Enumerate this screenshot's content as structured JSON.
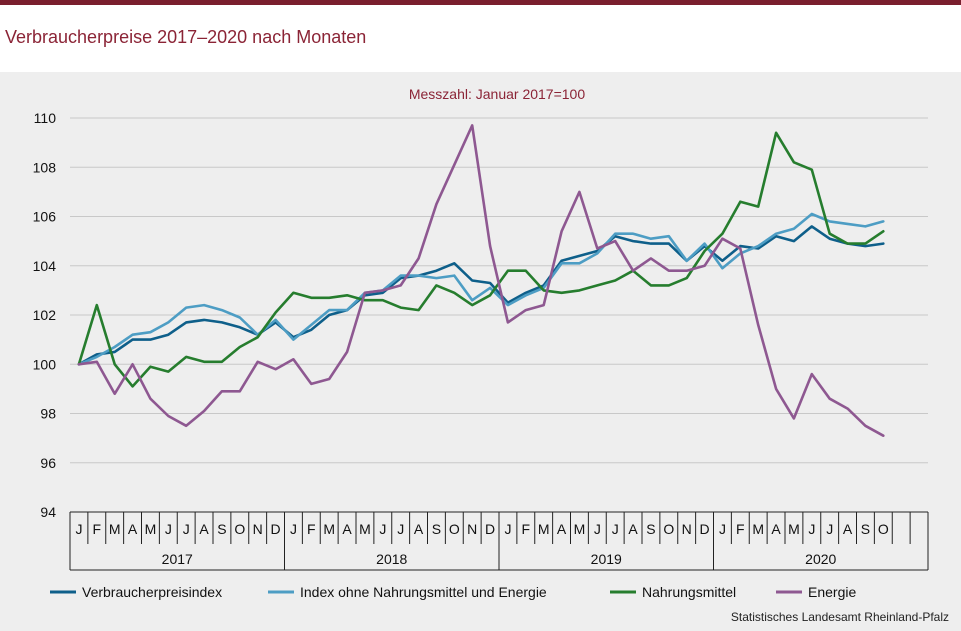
{
  "header": {
    "title": "Verbraucherpreise 2017–2020 nach Monaten"
  },
  "source": "Statistisches Landesamt Rheinland-Pfalz",
  "chart_data": {
    "type": "line",
    "subtitle": "Messzahl:  Januar  2017=100",
    "ylim": [
      94,
      110
    ],
    "yticks": [
      94,
      96,
      98,
      100,
      102,
      104,
      106,
      108,
      110
    ],
    "grid": true,
    "legend_position": "bottom",
    "month_labels": [
      "J",
      "F",
      "M",
      "A",
      "M",
      "J",
      "J",
      "A",
      "S",
      "O",
      "N",
      "D",
      "J",
      "F",
      "M",
      "A",
      "M",
      "J",
      "J",
      "A",
      "S",
      "O",
      "N",
      "D",
      "J",
      "F",
      "M",
      "A",
      "M",
      "J",
      "J",
      "A",
      "S",
      "O",
      "N",
      "D",
      "J",
      "F",
      "M",
      "A",
      "M",
      "J",
      "J",
      "A",
      "S",
      "O"
    ],
    "years": [
      "2017",
      "2018",
      "2019",
      "2020"
    ],
    "series": [
      {
        "name": "Verbraucherpreisindex",
        "color": "#0e5f8a",
        "values": [
          100.0,
          100.4,
          100.5,
          101.0,
          101.0,
          101.2,
          101.7,
          101.8,
          101.7,
          101.5,
          101.2,
          101.7,
          101.1,
          101.4,
          102.0,
          102.2,
          102.8,
          102.9,
          103.5,
          103.6,
          103.8,
          104.1,
          103.4,
          103.3,
          102.5,
          102.9,
          103.2,
          104.2,
          104.4,
          104.6,
          105.2,
          105.0,
          104.9,
          104.9,
          104.2,
          104.8,
          104.2,
          104.8,
          104.7,
          105.2,
          105.0,
          105.6,
          105.1,
          104.9,
          104.8,
          104.9
        ]
      },
      {
        "name": "Index ohne Nahrungsmittel und Energie",
        "color": "#4d9dc4",
        "values": [
          100.0,
          100.3,
          100.7,
          101.2,
          101.3,
          101.7,
          102.3,
          102.4,
          102.2,
          101.9,
          101.2,
          101.8,
          101.0,
          101.6,
          102.2,
          102.2,
          102.9,
          103.0,
          103.6,
          103.6,
          103.5,
          103.6,
          102.6,
          103.1,
          102.4,
          102.8,
          103.1,
          104.1,
          104.1,
          104.5,
          105.3,
          105.3,
          105.1,
          105.2,
          104.2,
          104.9,
          103.9,
          104.5,
          104.8,
          105.3,
          105.5,
          106.1,
          105.8,
          105.7,
          105.6,
          105.8
        ]
      },
      {
        "name": "Nahrungsmittel",
        "color": "#267d2e",
        "values": [
          100.0,
          102.4,
          100.0,
          99.1,
          99.9,
          99.7,
          100.3,
          100.1,
          100.1,
          100.7,
          101.1,
          102.1,
          102.9,
          102.7,
          102.7,
          102.8,
          102.6,
          102.6,
          102.3,
          102.2,
          103.2,
          102.9,
          102.4,
          102.8,
          103.8,
          103.8,
          103.0,
          102.9,
          103.0,
          103.2,
          103.4,
          103.8,
          103.2,
          103.2,
          103.5,
          104.6,
          105.3,
          106.6,
          106.4,
          109.4,
          108.2,
          107.9,
          105.3,
          104.9,
          104.9,
          105.4
        ]
      },
      {
        "name": "Energie",
        "color": "#8e5891",
        "values": [
          100.0,
          100.1,
          98.8,
          100.0,
          98.6,
          97.9,
          97.5,
          98.1,
          98.9,
          98.9,
          100.1,
          99.8,
          100.2,
          99.2,
          99.4,
          100.5,
          102.9,
          103.0,
          103.2,
          104.3,
          106.5,
          108.1,
          109.7,
          104.8,
          101.7,
          102.2,
          102.4,
          105.4,
          107.0,
          104.7,
          105.0,
          103.8,
          104.3,
          103.8,
          103.8,
          104.0,
          105.1,
          104.7,
          101.6,
          99.0,
          97.8,
          99.6,
          98.6,
          98.2,
          97.5,
          97.1
        ]
      }
    ]
  }
}
